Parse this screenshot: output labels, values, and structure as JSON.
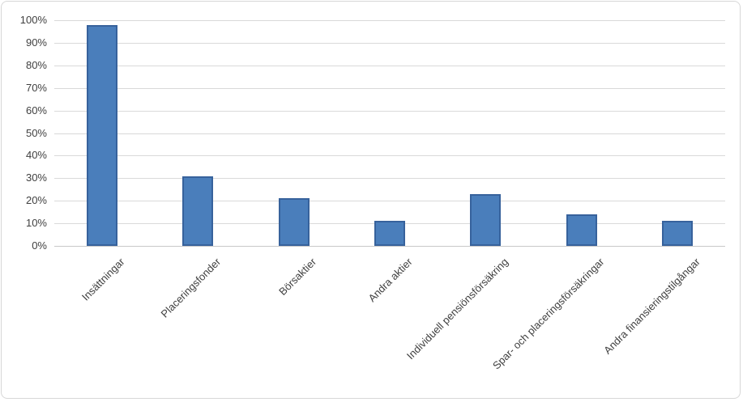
{
  "chart_data": {
    "type": "bar",
    "title": "",
    "xlabel": "",
    "ylabel": "",
    "categories": [
      "Insättningar",
      "Placeringsfonder",
      "Börsaktier",
      "Andra aktier",
      "Individuell pensiönsförsäkring",
      "Spar- och placeringsförsäkringar",
      "Andra finansieringstilgångar"
    ],
    "values": [
      98,
      31,
      21,
      11,
      23,
      14,
      11
    ],
    "unit": "%",
    "ylim": [
      0,
      100
    ],
    "ytick_step": 10,
    "ytick_labels": [
      "0%",
      "10%",
      "20%",
      "30%",
      "40%",
      "50%",
      "60%",
      "70%",
      "80%",
      "90%",
      "100%"
    ],
    "grid": true,
    "legend": false,
    "colors": {
      "bar_fill": "#4a7ebb",
      "bar_border": "#37629c",
      "gridline": "#d9d9d9",
      "axis_line": "#c8c8c8",
      "label_text": "#404040",
      "frame_border": "#d7d7d7",
      "background": "#ffffff"
    }
  }
}
